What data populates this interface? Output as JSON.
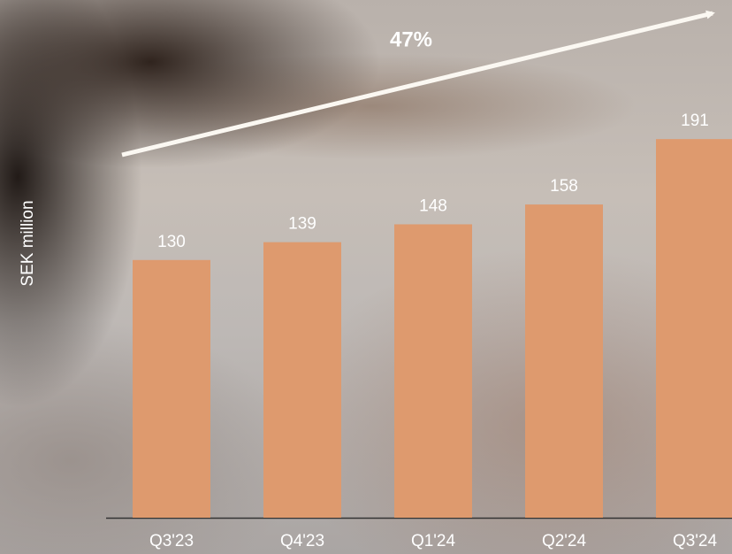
{
  "chart_data": {
    "type": "bar",
    "annotation": "47%",
    "y_label": "SEK million",
    "categories": [
      "Q3'23",
      "Q4'23",
      "Q1'24",
      "Q2'24",
      "Q3'24"
    ],
    "values": [
      130,
      139,
      148,
      158,
      191
    ],
    "color": "#de9a6e"
  }
}
